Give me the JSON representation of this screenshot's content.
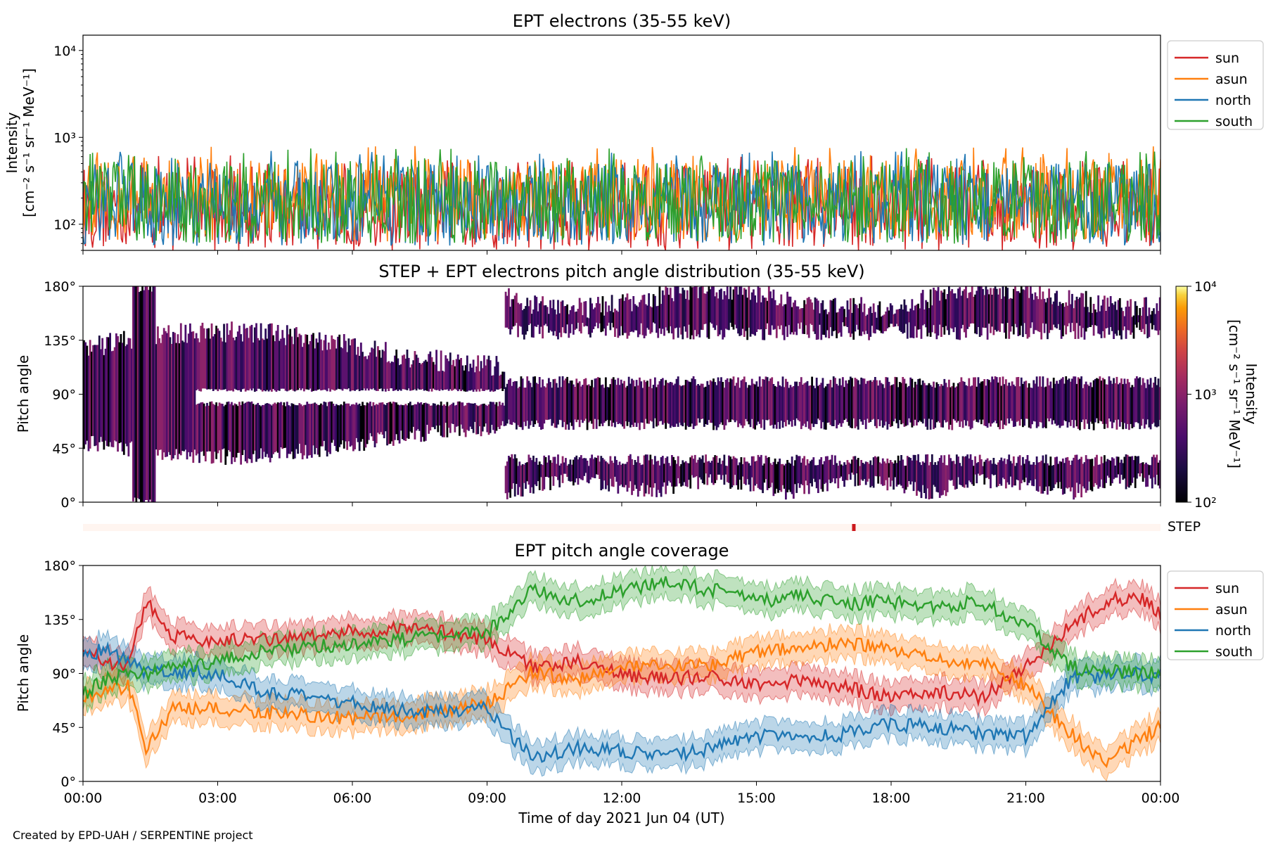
{
  "credit": "Created by EPD-UAH / SERPENTINE project",
  "chart_data": [
    {
      "id": "intensity",
      "type": "line",
      "title": "EPT electrons (35-55 keV)",
      "ylabel_line1": "Intensity",
      "ylabel_line2": "[cm⁻² s⁻¹ sr⁻¹ MeV⁻¹]",
      "yscale": "log",
      "ylim": [
        50,
        15000
      ],
      "yticks": [
        {
          "v": 100,
          "label": "10²"
        },
        {
          "v": 1000,
          "label": "10³"
        },
        {
          "v": 10000,
          "label": "10⁴"
        }
      ],
      "xlim_hours": [
        0,
        24
      ],
      "legend": "outside-right",
      "series": [
        {
          "name": "sun",
          "color": "#d62728",
          "level": 150
        },
        {
          "name": "asun",
          "color": "#ff7f0e",
          "level": 190
        },
        {
          "name": "north",
          "color": "#1f77b4",
          "level": 170
        },
        {
          "name": "south",
          "color": "#2ca02c",
          "level": 180
        }
      ]
    },
    {
      "id": "pad",
      "type": "heatmap",
      "title": "STEP + EPT electrons pitch angle distribution (35-55 keV)",
      "ylabel": "Pitch angle",
      "ylim": [
        0,
        180
      ],
      "yticks": [
        {
          "v": 0,
          "label": "0°"
        },
        {
          "v": 45,
          "label": "45°"
        },
        {
          "v": 90,
          "label": "90°"
        },
        {
          "v": 135,
          "label": "135°"
        },
        {
          "v": 180,
          "label": "180°"
        }
      ],
      "xlim_hours": [
        0,
        24
      ],
      "colorbar": {
        "label_line1": "Intensity",
        "label_line2": "[cm⁻² s⁻¹ sr⁻¹ MeV⁻¹]",
        "scale": "log",
        "range": [
          100,
          10000
        ],
        "ticks": [
          {
            "v": 100,
            "label": "10²"
          },
          {
            "v": 1000,
            "label": "10³"
          },
          {
            "v": 10000,
            "label": "10⁴"
          }
        ],
        "colormap": "inferno"
      }
    },
    {
      "id": "step",
      "type": "bar",
      "label": "STEP",
      "background_color": "#fff5f0",
      "mark_color": "#cb181d",
      "mark_hours": [
        17.13,
        17.2
      ]
    },
    {
      "id": "coverage",
      "type": "line",
      "title": "EPT pitch angle coverage",
      "ylabel": "Pitch angle",
      "xlabel": "Time of day 2021 Jun 04 (UT)",
      "ylim": [
        0,
        180
      ],
      "yticks": [
        {
          "v": 0,
          "label": "0°"
        },
        {
          "v": 45,
          "label": "45°"
        },
        {
          "v": 90,
          "label": "90°"
        },
        {
          "v": 135,
          "label": "135°"
        },
        {
          "v": 180,
          "label": "180°"
        }
      ],
      "xlim_hours": [
        0,
        24
      ],
      "xticks": [
        {
          "v": 0,
          "label": "00:00"
        },
        {
          "v": 3,
          "label": "03:00"
        },
        {
          "v": 6,
          "label": "06:00"
        },
        {
          "v": 9,
          "label": "09:00"
        },
        {
          "v": 12,
          "label": "12:00"
        },
        {
          "v": 15,
          "label": "15:00"
        },
        {
          "v": 18,
          "label": "18:00"
        },
        {
          "v": 21,
          "label": "21:00"
        },
        {
          "v": 24,
          "label": "00:00"
        }
      ],
      "legend": "outside-right",
      "series": [
        {
          "name": "sun",
          "color": "#d62728",
          "x": [
            0,
            0.5,
            1,
            1.4,
            2,
            3,
            4,
            5,
            6,
            7,
            8,
            9,
            9.5,
            10,
            11,
            12,
            13,
            14,
            15,
            16,
            17,
            18,
            19,
            20,
            21,
            22,
            22.8,
            23.5,
            24
          ],
          "y": [
            112,
            100,
            95,
            150,
            120,
            118,
            118,
            120,
            125,
            128,
            125,
            118,
            108,
            95,
            100,
            90,
            85,
            88,
            80,
            85,
            78,
            70,
            75,
            70,
            95,
            130,
            150,
            155,
            140
          ]
        },
        {
          "name": "asun",
          "color": "#ff7f0e",
          "x": [
            0,
            0.5,
            1,
            1.4,
            2,
            3,
            4,
            5,
            6,
            7,
            8,
            9,
            9.5,
            10,
            11,
            12,
            13,
            14,
            15,
            16,
            17,
            18,
            19,
            20,
            21,
            22,
            22.8,
            23.5,
            24
          ],
          "y": [
            70,
            75,
            80,
            28,
            60,
            60,
            58,
            55,
            52,
            55,
            58,
            65,
            78,
            92,
            85,
            95,
            95,
            98,
            108,
            112,
            115,
            110,
            100,
            100,
            80,
            40,
            15,
            35,
            45
          ]
        },
        {
          "name": "north",
          "color": "#1f77b4",
          "x": [
            0,
            0.5,
            1,
            1.4,
            2,
            3,
            4,
            5,
            6,
            7,
            8,
            9,
            9.5,
            10,
            11,
            12,
            13,
            14,
            15,
            16,
            17,
            18,
            19,
            20,
            21,
            22,
            22.8,
            23.5,
            24
          ],
          "y": [
            105,
            110,
            100,
            90,
            92,
            90,
            75,
            70,
            65,
            60,
            58,
            62,
            40,
            20,
            28,
            25,
            20,
            28,
            38,
            35,
            40,
            48,
            45,
            40,
            38,
            85,
            88,
            90,
            88
          ]
        },
        {
          "name": "south",
          "color": "#2ca02c",
          "x": [
            0,
            0.5,
            1,
            1.4,
            2,
            3,
            4,
            5,
            6,
            7,
            8,
            9,
            9.5,
            10,
            11,
            12,
            13,
            14,
            15,
            16,
            17,
            18,
            19,
            20,
            21,
            22,
            22.8,
            23.5,
            24
          ],
          "y": [
            72,
            85,
            90,
            90,
            95,
            100,
            108,
            112,
            115,
            118,
            120,
            125,
            140,
            160,
            150,
            160,
            165,
            160,
            150,
            155,
            148,
            150,
            145,
            150,
            130,
            95,
            92,
            90,
            90
          ]
        }
      ]
    }
  ]
}
